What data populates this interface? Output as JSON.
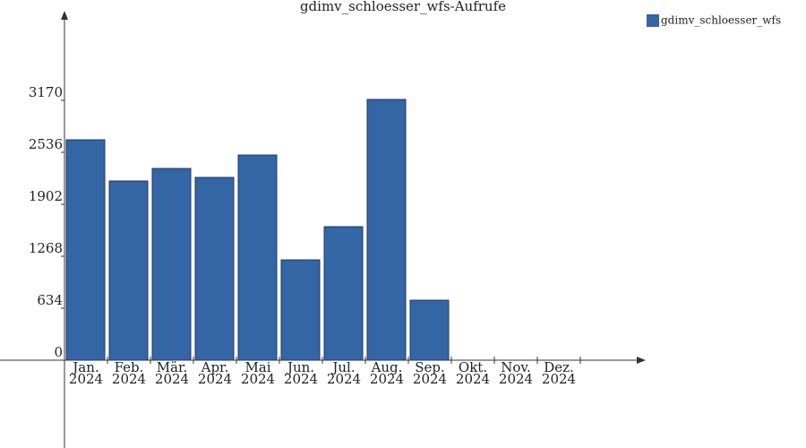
{
  "chart_data": {
    "type": "bar",
    "title": "gdimv_schloesser_wfs-Aufrufe",
    "categories": [
      [
        "Jan.",
        "2024"
      ],
      [
        "Feb.",
        "2024"
      ],
      [
        "Mär.",
        "2024"
      ],
      [
        "Apr.",
        "2024"
      ],
      [
        "Mai",
        "2024"
      ],
      [
        "Jun.",
        "2024"
      ],
      [
        "Jul.",
        "2024"
      ],
      [
        "Aug.",
        "2024"
      ],
      [
        "Sep.",
        "2024"
      ],
      [
        "Okt.",
        "2024"
      ],
      [
        "Nov.",
        "2024"
      ],
      [
        "Dez.",
        "2024"
      ]
    ],
    "series": [
      {
        "name": "gdimv_schloesser_wfs",
        "color": "#3465a4",
        "values": [
          2689,
          2186,
          2339,
          2230,
          2503,
          1224,
          1629,
          3181,
          732,
          0,
          0,
          0
        ]
      }
    ],
    "ylim": [
      0,
      4230
    ],
    "yticks": [
      0,
      634,
      1268,
      1902,
      2536,
      3170
    ],
    "legend": "top-right"
  }
}
